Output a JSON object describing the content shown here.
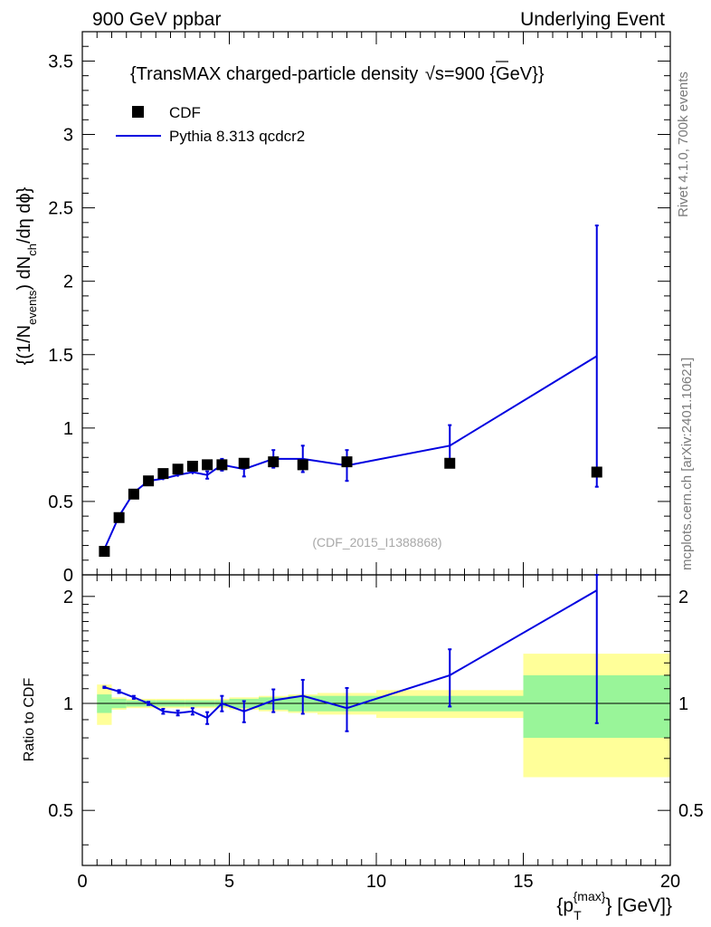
{
  "header": {
    "left": "900 GeV ppbar",
    "right": "Underlying Event"
  },
  "side_labels": {
    "rivet": "Rivet 4.1.0,  700k events",
    "mcplots": "mcplots.cern.ch [arXiv:2401.10621]"
  },
  "watermark": "(CDF_2015_I1388868)",
  "title": {
    "prefix": "{TransMAX charged-particle density ",
    "suffix": "s=900 {GeV}}"
  },
  "legend": {
    "data_label": "CDF",
    "mc_label": "Pythia 8.313 qcdcr2"
  },
  "ylabel": {
    "part1": "{(1/N",
    "sub1": "events",
    "part2": ") dN",
    "sub2": "ch",
    "part3": "/dη dϕ}"
  },
  "ratio_ylabel": "Ratio to CDF",
  "xlabel": {
    "part1": "{p",
    "sub": "T",
    "sup": "{max}",
    "part2": "} [GeV]}"
  },
  "colors": {
    "mc": "#0000e0",
    "band_inner": "#99f599",
    "band_outer": "#ffff99",
    "data": "#000000"
  },
  "chart_data": {
    "type": "scatter",
    "xlim": [
      0,
      20
    ],
    "ylim": [
      0,
      3.7
    ],
    "ratio_ylim": [
      0.35,
      2.3
    ],
    "x_ticks": [
      "0",
      "5",
      "10",
      "15",
      "20"
    ],
    "y_ticks": [
      "0",
      "0.5",
      "1",
      "1.5",
      "2",
      "2.5",
      "3",
      "3.5"
    ],
    "ratio_ticks": [
      "0.5",
      "1",
      "2"
    ],
    "data": {
      "name": "CDF",
      "bins": [
        [
          0.5,
          1
        ],
        [
          1,
          1.5
        ],
        [
          1.5,
          2
        ],
        [
          2,
          2.5
        ],
        [
          2.5,
          3
        ],
        [
          3,
          3.5
        ],
        [
          3.5,
          4
        ],
        [
          4,
          4.5
        ],
        [
          4.5,
          5
        ],
        [
          5,
          6
        ],
        [
          6,
          7
        ],
        [
          7,
          8
        ],
        [
          8,
          10
        ],
        [
          10,
          15
        ],
        [
          15,
          20
        ]
      ],
      "x": [
        0.75,
        1.25,
        1.75,
        2.25,
        2.75,
        3.25,
        3.75,
        4.25,
        4.75,
        5.5,
        6.5,
        7.5,
        9,
        12.5,
        17.5
      ],
      "y": [
        0.16,
        0.39,
        0.55,
        0.64,
        0.69,
        0.72,
        0.74,
        0.75,
        0.75,
        0.76,
        0.77,
        0.75,
        0.77,
        0.76,
        0.7
      ],
      "ratio_stat": [
        0.06,
        0.03,
        0.02,
        0.02,
        0.02,
        0.02,
        0.02,
        0.02,
        0.02,
        0.03,
        0.04,
        0.05,
        0.05,
        0.05,
        0.2
      ],
      "ratio_total": [
        0.13,
        0.04,
        0.03,
        0.03,
        0.03,
        0.03,
        0.03,
        0.03,
        0.03,
        0.04,
        0.05,
        0.06,
        0.07,
        0.09,
        0.38
      ]
    },
    "mc": {
      "name": "Pythia 8.313 qcdcr2",
      "x": [
        0.75,
        1.25,
        1.75,
        2.25,
        2.75,
        3.25,
        3.75,
        4.25,
        4.75,
        5.5,
        6.5,
        7.5,
        9,
        12.5,
        17.5
      ],
      "y": [
        0.175,
        0.4,
        0.56,
        0.64,
        0.655,
        0.68,
        0.7,
        0.68,
        0.75,
        0.72,
        0.79,
        0.79,
        0.745,
        0.88,
        1.49
      ],
      "yerr": [
        0.004,
        0.006,
        0.007,
        0.008,
        0.01,
        0.012,
        0.015,
        0.025,
        0.04,
        0.05,
        0.06,
        0.09,
        0.105,
        0.14,
        0.89
      ],
      "ratio": [
        1.11,
        1.08,
        1.04,
        1.0,
        0.95,
        0.94,
        0.95,
        0.91,
        1.0,
        0.95,
        1.02,
        1.05,
        0.97,
        1.2,
        2.08
      ],
      "ratio_err": [
        0.005,
        0.01,
        0.01,
        0.01,
        0.015,
        0.015,
        0.02,
        0.035,
        0.05,
        0.065,
        0.075,
        0.115,
        0.135,
        0.22,
        1.2
      ]
    }
  }
}
